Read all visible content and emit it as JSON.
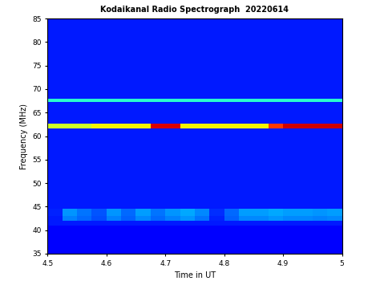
{
  "chart_data": {
    "type": "heatmap",
    "title": "Kodaikanal Radio Spectrograph  20220614",
    "x_label": "Time in UT",
    "y_label": "Frequency (MHz)",
    "xlim": [
      4.5,
      5
    ],
    "ylim": [
      35,
      85
    ],
    "xticks": [
      4.5,
      4.6,
      4.7,
      4.8,
      4.9,
      5
    ],
    "yticks": [
      35,
      40,
      45,
      50,
      55,
      60,
      65,
      70,
      75,
      80,
      85
    ],
    "x_edges": [
      4.5,
      4.525,
      4.55,
      4.575,
      4.6,
      4.625,
      4.65,
      4.675,
      4.7,
      4.725,
      4.75,
      4.775,
      4.8,
      4.825,
      4.85,
      4.875,
      4.9,
      4.925,
      4.95,
      4.975,
      5.0
    ],
    "y_edges": [
      35,
      41,
      42,
      43,
      44.5,
      61.7,
      62.6,
      67.3,
      67.9,
      85
    ],
    "color_range": [
      0,
      10
    ],
    "cells": [
      [
        1.1,
        1.1,
        1.1,
        1.1,
        1.1,
        1.1,
        1.1,
        1.1,
        1.1,
        1.1,
        1.1,
        1.1,
        1.1,
        1.1,
        1.1,
        1.1,
        1.1,
        1.1,
        1.1,
        1.1
      ],
      [
        1.5,
        1.5,
        1.5,
        1.5,
        1.5,
        1.5,
        1.5,
        1.5,
        1.5,
        1.5,
        1.5,
        1.5,
        1.5,
        1.5,
        1.5,
        1.5,
        1.5,
        1.5,
        1.5,
        1.5
      ],
      [
        1.5,
        2.5,
        2.3,
        2.0,
        2.5,
        2.2,
        2.6,
        2.3,
        2.5,
        2.7,
        2.4,
        1.6,
        2.2,
        2.6,
        2.6,
        2.7,
        2.6,
        2.6,
        2.5,
        2.6
      ],
      [
        1.6,
        2.7,
        2.4,
        2.1,
        2.7,
        2.3,
        2.8,
        2.4,
        2.7,
        2.9,
        2.6,
        1.7,
        2.3,
        2.8,
        2.8,
        2.9,
        2.8,
        2.8,
        2.7,
        2.8
      ],
      [
        1.5,
        1.5,
        1.5,
        1.5,
        1.5,
        1.5,
        1.5,
        1.5,
        1.5,
        1.5,
        1.5,
        1.5,
        1.5,
        1.5,
        1.5,
        1.5,
        1.5,
        1.5,
        1.5,
        1.5
      ],
      [
        6.0,
        6.0,
        6.0,
        6.5,
        6.5,
        6.5,
        6.5,
        9.2,
        9.2,
        6.5,
        6.5,
        6.5,
        6.5,
        6.5,
        6.5,
        8.5,
        9.3,
        9.3,
        9.3,
        9.3
      ],
      [
        1.5,
        1.5,
        1.5,
        1.5,
        1.5,
        1.5,
        1.5,
        1.5,
        1.5,
        1.5,
        1.5,
        1.5,
        1.5,
        1.5,
        1.5,
        1.5,
        1.5,
        1.5,
        1.5,
        1.5
      ],
      [
        4.0,
        4.0,
        4.0,
        4.0,
        4.0,
        4.0,
        4.0,
        4.0,
        4.0,
        4.0,
        4.0,
        4.0,
        4.0,
        4.0,
        4.0,
        4.0,
        4.0,
        4.0,
        4.0,
        4.0
      ],
      [
        1.5,
        1.5,
        1.5,
        1.5,
        1.5,
        1.5,
        1.5,
        1.5,
        1.5,
        1.5,
        1.5,
        1.5,
        1.5,
        1.5,
        1.5,
        1.5,
        1.5,
        1.5,
        1.5,
        1.5
      ]
    ]
  }
}
